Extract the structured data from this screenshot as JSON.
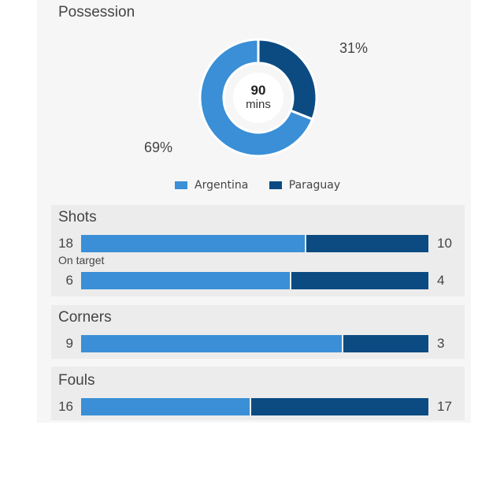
{
  "chart_data": {
    "possession": {
      "type": "pie",
      "title": "Possession",
      "center_value": "90",
      "center_unit": "mins",
      "series": [
        {
          "name": "Argentina",
          "value": 69,
          "label": "69%",
          "color": "#3a8fd6"
        },
        {
          "name": "Paraguay",
          "value": 31,
          "label": "31%",
          "color": "#0c4b82"
        }
      ]
    },
    "stats": {
      "type": "bar",
      "series_names": [
        "Argentina",
        "Paraguay"
      ],
      "colors": {
        "Argentina": "#3a8fd6",
        "Paraguay": "#0c4b82"
      },
      "shots": {
        "title": "Shots",
        "left": 18,
        "right": 10,
        "left_label": "18",
        "right_label": "10"
      },
      "on_target": {
        "title": "On target",
        "left": 6,
        "right": 4,
        "left_label": "6",
        "right_label": "4"
      },
      "corners": {
        "title": "Corners",
        "left": 9,
        "right": 3,
        "left_label": "9",
        "right_label": "3"
      },
      "fouls": {
        "title": "Fouls",
        "left": 16,
        "right": 17,
        "left_label": "16",
        "right_label": "17"
      }
    }
  }
}
